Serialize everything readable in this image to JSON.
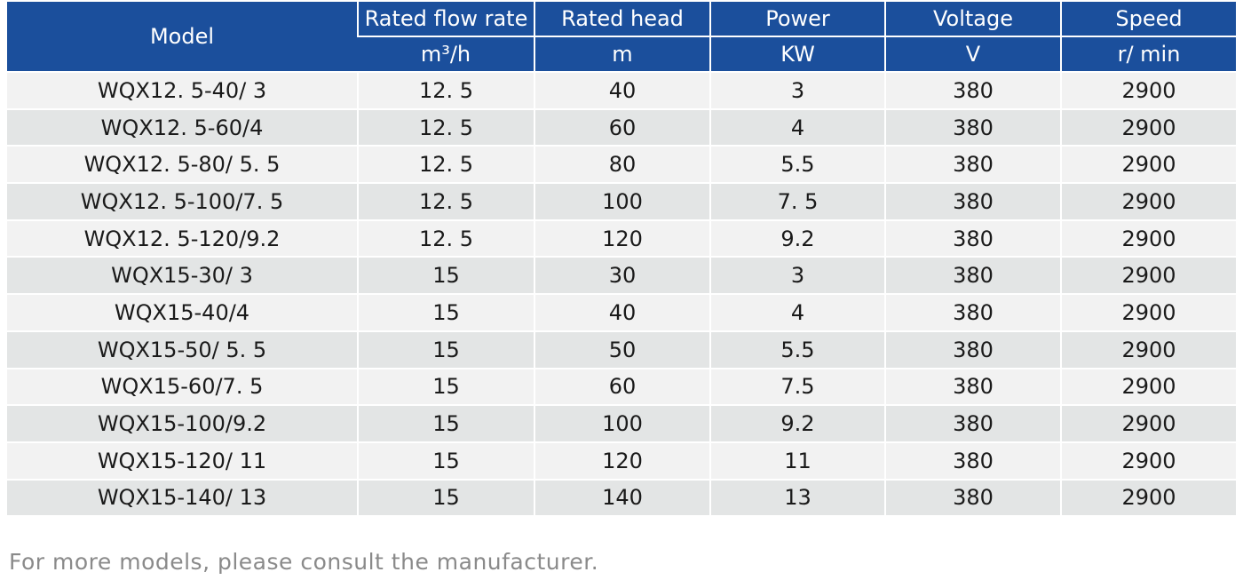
{
  "table": {
    "headers": {
      "model": "Model",
      "flow": "Rated flow rate",
      "head": "Rated head",
      "power": "Power",
      "voltage": "Voltage",
      "speed": "Speed"
    },
    "units": {
      "flow": "m³/h",
      "head": "m",
      "power": "KW",
      "voltage": "V",
      "speed": "r/ min"
    },
    "rows": [
      {
        "model": "WQX12. 5-40/ 3",
        "flow": "12. 5",
        "head": "40",
        "power": "3",
        "voltage": "380",
        "speed": "2900"
      },
      {
        "model": "WQX12. 5-60/4",
        "flow": "12. 5",
        "head": "60",
        "power": "4",
        "voltage": "380",
        "speed": "2900"
      },
      {
        "model": "WQX12. 5-80/ 5. 5",
        "flow": "12. 5",
        "head": "80",
        "power": "5.5",
        "voltage": "380",
        "speed": "2900"
      },
      {
        "model": "WQX12. 5-100/7. 5",
        "flow": "12. 5",
        "head": "100",
        "power": "7. 5",
        "voltage": "380",
        "speed": "2900"
      },
      {
        "model": "WQX12. 5-120/9.2",
        "flow": "12. 5",
        "head": "120",
        "power": "9.2",
        "voltage": "380",
        "speed": "2900"
      },
      {
        "model": "WQX15-30/ 3",
        "flow": "15",
        "head": "30",
        "power": "3",
        "voltage": "380",
        "speed": "2900"
      },
      {
        "model": "WQX15-40/4",
        "flow": "15",
        "head": "40",
        "power": "4",
        "voltage": "380",
        "speed": "2900"
      },
      {
        "model": "WQX15-50/ 5. 5",
        "flow": "15",
        "head": "50",
        "power": "5.5",
        "voltage": "380",
        "speed": "2900"
      },
      {
        "model": "WQX15-60/7. 5",
        "flow": "15",
        "head": "60",
        "power": "7.5",
        "voltage": "380",
        "speed": "2900"
      },
      {
        "model": "WQX15-100/9.2",
        "flow": "15",
        "head": "100",
        "power": "9.2",
        "voltage": "380",
        "speed": "2900"
      },
      {
        "model": "WQX15-120/ 11",
        "flow": "15",
        "head": "120",
        "power": "11",
        "voltage": "380",
        "speed": "2900"
      },
      {
        "model": "WQX15-140/ 13",
        "flow": "15",
        "head": "140",
        "power": "13",
        "voltage": "380",
        "speed": "2900"
      }
    ]
  },
  "footnote": "For more models, please consult the manufacturer.",
  "colors": {
    "header_bg": "#1b4f9c",
    "row_light": "#f2f2f2",
    "row_dark": "#e3e5e5",
    "footnote_text": "#8a8a8a"
  }
}
